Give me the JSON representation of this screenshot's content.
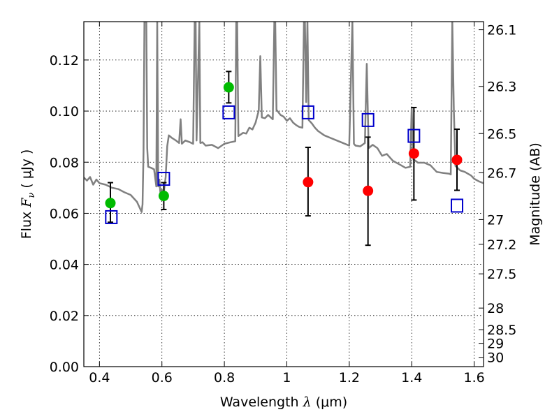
{
  "chart_data": {
    "type": "scatter",
    "xlabel_text": "Wavelength",
    "xlabel_symbol": "λ",
    "xlabel_unit": "(μm)",
    "ylabel_text": "Flux",
    "ylabel_symbol": "F",
    "ylabel_subscript": "ν",
    "ylabel_unit": "( μJy )",
    "y2label": "Magnitude (AB)",
    "xlim": [
      0.35,
      1.63
    ],
    "ylim": [
      0.0,
      0.135
    ],
    "grid": true,
    "x_ticks": [
      {
        "value": 0.4,
        "label": "0.4"
      },
      {
        "value": 0.6,
        "label": "0.6"
      },
      {
        "value": 0.8,
        "label": "0.8"
      },
      {
        "value": 1.0,
        "label": "1"
      },
      {
        "value": 1.2,
        "label": "1.2"
      },
      {
        "value": 1.4,
        "label": "1.4"
      },
      {
        "value": 1.6,
        "label": "1.6"
      }
    ],
    "y_ticks": [
      {
        "value": 0.0,
        "label": "0.00"
      },
      {
        "value": 0.02,
        "label": "0.02"
      },
      {
        "value": 0.04,
        "label": "0.04"
      },
      {
        "value": 0.06,
        "label": "0.06"
      },
      {
        "value": 0.08,
        "label": "0.08"
      },
      {
        "value": 0.1,
        "label": "0.10"
      },
      {
        "value": 0.12,
        "label": "0.12"
      }
    ],
    "mag_ticks": [
      {
        "value": 26.1,
        "label": "26.1"
      },
      {
        "value": 26.3,
        "label": "26.3"
      },
      {
        "value": 26.5,
        "label": "26.5"
      },
      {
        "value": 26.7,
        "label": "26.7"
      },
      {
        "value": 27.0,
        "label": "27"
      },
      {
        "value": 27.2,
        "label": "27.2"
      },
      {
        "value": 27.5,
        "label": "27.5"
      },
      {
        "value": 28.0,
        "label": "28"
      },
      {
        "value": 28.5,
        "label": "28.5"
      },
      {
        "value": 29.0,
        "label": "29"
      },
      {
        "value": 30.0,
        "label": "30"
      }
    ],
    "series": [
      {
        "marker": "circle",
        "color": "#00bb00",
        "points": [
          {
            "x": 0.435,
            "y": 0.064,
            "yerr_low": 0.0565,
            "yerr_high": 0.072
          },
          {
            "x": 0.606,
            "y": 0.0668,
            "yerr_low": 0.0615,
            "yerr_high": 0.072
          },
          {
            "x": 0.814,
            "y": 0.1093,
            "yerr_low": 0.1032,
            "yerr_high": 0.1155
          }
        ]
      },
      {
        "marker": "circle",
        "color": "#ff0000",
        "points": [
          {
            "x": 1.068,
            "y": 0.0722,
            "yerr_low": 0.059,
            "yerr_high": 0.0858
          },
          {
            "x": 1.26,
            "y": 0.0688,
            "yerr_low": 0.0475,
            "yerr_high": 0.0898
          },
          {
            "x": 1.407,
            "y": 0.0834,
            "yerr_low": 0.0652,
            "yerr_high": 0.1014
          },
          {
            "x": 1.545,
            "y": 0.0809,
            "yerr_low": 0.069,
            "yerr_high": 0.0929
          }
        ]
      },
      {
        "marker": "open-square",
        "color": "#0000cc",
        "points": [
          {
            "x": 0.438,
            "y": 0.0585
          },
          {
            "x": 0.606,
            "y": 0.0735
          },
          {
            "x": 0.814,
            "y": 0.0995
          },
          {
            "x": 1.068,
            "y": 0.0995
          },
          {
            "x": 1.26,
            "y": 0.0965
          },
          {
            "x": 1.407,
            "y": 0.0903
          },
          {
            "x": 1.545,
            "y": 0.063
          }
        ]
      }
    ],
    "spectrum": {
      "color": "#808080",
      "points": [
        [
          0.35,
          0.074
        ],
        [
          0.36,
          0.0728
        ],
        [
          0.37,
          0.0742
        ],
        [
          0.38,
          0.0712
        ],
        [
          0.39,
          0.0732
        ],
        [
          0.4,
          0.0718
        ],
        [
          0.42,
          0.0712
        ],
        [
          0.44,
          0.07
        ],
        [
          0.46,
          0.0695
        ],
        [
          0.48,
          0.0682
        ],
        [
          0.5,
          0.0672
        ],
        [
          0.52,
          0.0645
        ],
        [
          0.535,
          0.0605
        ],
        [
          0.538,
          0.0635
        ],
        [
          0.541,
          0.084
        ],
        [
          0.544,
          0.135
        ],
        [
          0.547,
          0.135
        ],
        [
          0.55,
          0.135
        ],
        [
          0.553,
          0.0855
        ],
        [
          0.556,
          0.0782
        ],
        [
          0.565,
          0.0778
        ],
        [
          0.575,
          0.0772
        ],
        [
          0.582,
          0.0705
        ],
        [
          0.585,
          0.135
        ],
        [
          0.588,
          0.0705
        ],
        [
          0.592,
          0.0732
        ],
        [
          0.596,
          0.0665
        ],
        [
          0.6,
          0.0692
        ],
        [
          0.604,
          0.0655
        ],
        [
          0.608,
          0.0702
        ],
        [
          0.612,
          0.0742
        ],
        [
          0.617,
          0.0862
        ],
        [
          0.622,
          0.0905
        ],
        [
          0.632,
          0.0895
        ],
        [
          0.645,
          0.0885
        ],
        [
          0.655,
          0.0875
        ],
        [
          0.66,
          0.0968
        ],
        [
          0.664,
          0.0872
        ],
        [
          0.675,
          0.0885
        ],
        [
          0.69,
          0.0878
        ],
        [
          0.7,
          0.0872
        ],
        [
          0.705,
          0.135
        ],
        [
          0.708,
          0.135
        ],
        [
          0.711,
          0.0885
        ],
        [
          0.72,
          0.135
        ],
        [
          0.723,
          0.0875
        ],
        [
          0.73,
          0.0878
        ],
        [
          0.74,
          0.0865
        ],
        [
          0.76,
          0.0868
        ],
        [
          0.78,
          0.0855
        ],
        [
          0.8,
          0.0872
        ],
        [
          0.82,
          0.0878
        ],
        [
          0.835,
          0.0882
        ],
        [
          0.838,
          0.135
        ],
        [
          0.841,
          0.135
        ],
        [
          0.845,
          0.0902
        ],
        [
          0.86,
          0.0915
        ],
        [
          0.87,
          0.0912
        ],
        [
          0.88,
          0.0935
        ],
        [
          0.89,
          0.0928
        ],
        [
          0.9,
          0.0955
        ],
        [
          0.91,
          0.1002
        ],
        [
          0.915,
          0.1215
        ],
        [
          0.92,
          0.0975
        ],
        [
          0.93,
          0.0972
        ],
        [
          0.94,
          0.0985
        ],
        [
          0.955,
          0.0968
        ],
        [
          0.96,
          0.135
        ],
        [
          0.963,
          0.135
        ],
        [
          0.967,
          0.1005
        ],
        [
          0.98,
          0.0985
        ],
        [
          0.99,
          0.0978
        ],
        [
          1.0,
          0.0962
        ],
        [
          1.01,
          0.0972
        ],
        [
          1.02,
          0.0955
        ],
        [
          1.03,
          0.0945
        ],
        [
          1.04,
          0.0938
        ],
        [
          1.05,
          0.0935
        ],
        [
          1.055,
          0.135
        ],
        [
          1.058,
          0.135
        ],
        [
          1.062,
          0.1035
        ],
        [
          1.066,
          0.135
        ],
        [
          1.07,
          0.0965
        ],
        [
          1.08,
          0.0952
        ],
        [
          1.09,
          0.0935
        ],
        [
          1.1,
          0.0922
        ],
        [
          1.12,
          0.0905
        ],
        [
          1.14,
          0.0895
        ],
        [
          1.16,
          0.0885
        ],
        [
          1.18,
          0.0875
        ],
        [
          1.2,
          0.0865
        ],
        [
          1.21,
          0.135
        ],
        [
          1.215,
          0.0872
        ],
        [
          1.22,
          0.0865
        ],
        [
          1.235,
          0.0862
        ],
        [
          1.25,
          0.0875
        ],
        [
          1.256,
          0.1185
        ],
        [
          1.262,
          0.0855
        ],
        [
          1.275,
          0.0868
        ],
        [
          1.29,
          0.0855
        ],
        [
          1.305,
          0.0825
        ],
        [
          1.32,
          0.0832
        ],
        [
          1.34,
          0.0805
        ],
        [
          1.36,
          0.0792
        ],
        [
          1.38,
          0.0778
        ],
        [
          1.395,
          0.0782
        ],
        [
          1.4,
          0.1015
        ],
        [
          1.405,
          0.0812
        ],
        [
          1.42,
          0.0798
        ],
        [
          1.44,
          0.0798
        ],
        [
          1.46,
          0.0788
        ],
        [
          1.48,
          0.0762
        ],
        [
          1.5,
          0.0758
        ],
        [
          1.52,
          0.0755
        ],
        [
          1.525,
          0.0752
        ],
        [
          1.53,
          0.135
        ],
        [
          1.535,
          0.1005
        ],
        [
          1.54,
          0.0785
        ],
        [
          1.555,
          0.0768
        ],
        [
          1.57,
          0.0762
        ],
        [
          1.59,
          0.0748
        ],
        [
          1.6,
          0.0735
        ],
        [
          1.615,
          0.0725
        ],
        [
          1.63,
          0.0718
        ]
      ]
    }
  }
}
